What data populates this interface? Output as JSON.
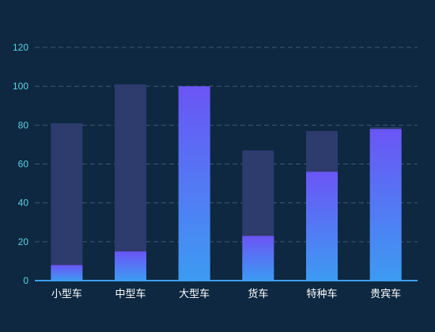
{
  "chart_data": {
    "type": "bar",
    "categories": [
      "小型车",
      "中型车",
      "大型车",
      "货车",
      "特种车",
      "贵宾车"
    ],
    "series": [
      {
        "role": "background",
        "values": [
          81,
          101,
          100,
          67,
          77,
          79
        ]
      },
      {
        "role": "foreground",
        "values": [
          8,
          15,
          100,
          23,
          56,
          78
        ]
      }
    ],
    "ylim": [
      0,
      120
    ],
    "yticks": [
      0,
      20,
      40,
      60,
      80,
      100,
      120
    ],
    "grid": true,
    "colors": {
      "background": "#0d2840",
      "bar_back": "#2e3b6d",
      "bar_top": "#6b55f5",
      "bar_bottom": "#3c9bf2",
      "axis": "#3b9ff0",
      "grid": "#3d5a72",
      "ytick": "#5ad3e6",
      "xtick": "#ffffff"
    }
  }
}
